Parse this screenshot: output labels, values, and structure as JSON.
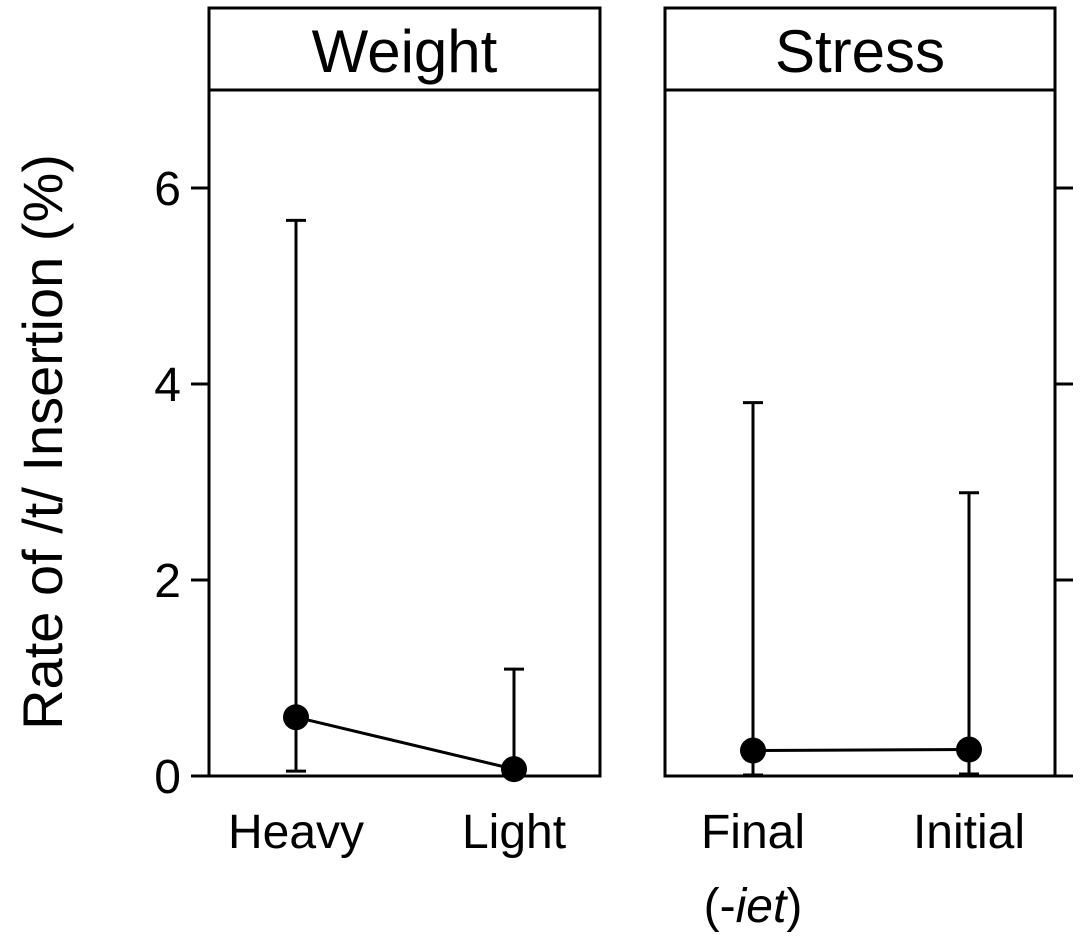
{
  "chart_data": {
    "type": "scatter",
    "ylabel": "Rate of /t/ Insertion (%)",
    "ylim": [
      0,
      7
    ],
    "yticks": [
      "0",
      "2",
      "4",
      "6"
    ],
    "ytick_values": [
      0,
      2,
      4,
      6
    ],
    "grid": false,
    "legend": "none",
    "panels": [
      {
        "title": "Weight",
        "categories": [
          {
            "label": "Heavy",
            "label_line2": "",
            "label_line2_italic": "",
            "label_line2_close": ""
          },
          {
            "label": "Light",
            "label_line2": "",
            "label_line2_italic": "",
            "label_line2_close": ""
          }
        ],
        "values": [
          0.6,
          0.07
        ],
        "ci_low": [
          0.05,
          0.0
        ],
        "ci_high": [
          5.67,
          1.09
        ]
      },
      {
        "title": "Stress",
        "categories": [
          {
            "label": "Final",
            "label_line2": "(-",
            "label_line2_italic": "iet",
            "label_line2_close": ")"
          },
          {
            "label": "Initial",
            "label_line2": "",
            "label_line2_italic": "",
            "label_line2_close": ""
          }
        ],
        "values": [
          0.26,
          0.27
        ],
        "ci_low": [
          0.01,
          0.02
        ],
        "ci_high": [
          3.81,
          2.89
        ]
      }
    ]
  }
}
